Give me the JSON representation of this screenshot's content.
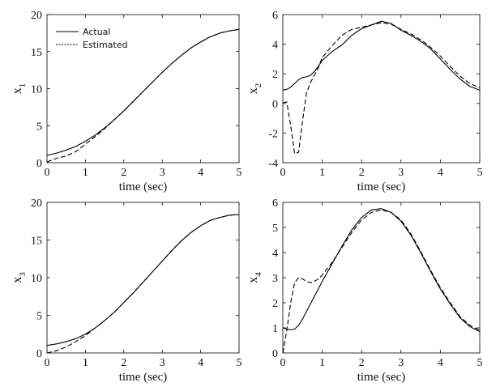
{
  "legend": {
    "actual_label": "Actual",
    "estimated_label": "Estimated"
  },
  "colors": {
    "line": "#000000",
    "frame": "#222222"
  },
  "chart_data": [
    {
      "type": "line",
      "ylabel": "x",
      "ylabel_sub": "1",
      "xlabel": "time (sec)",
      "xlim": [
        0,
        5
      ],
      "ylim": [
        0,
        20
      ],
      "xticks": [
        0,
        1,
        2,
        3,
        4,
        5
      ],
      "yticks": [
        0,
        5,
        10,
        15,
        20
      ],
      "legend_position": "top-left",
      "grid": false,
      "x": [
        0,
        0.25,
        0.5,
        0.75,
        1,
        1.25,
        1.5,
        1.75,
        2,
        2.25,
        2.5,
        2.75,
        3,
        3.25,
        3.5,
        3.75,
        4,
        4.25,
        4.5,
        4.75,
        5
      ],
      "series": [
        {
          "name": "Actual",
          "style": "solid",
          "values": [
            1.0,
            1.3,
            1.7,
            2.2,
            2.9,
            3.7,
            4.7,
            5.8,
            7.0,
            8.3,
            9.6,
            10.9,
            12.2,
            13.4,
            14.5,
            15.5,
            16.3,
            17.0,
            17.5,
            17.8,
            18.0
          ]
        },
        {
          "name": "Estimated",
          "style": "dashed",
          "values": [
            0.1,
            0.6,
            0.9,
            1.5,
            2.5,
            3.5,
            4.6,
            5.8,
            7.0,
            8.3,
            9.6,
            10.9,
            12.2,
            13.4,
            14.5,
            15.5,
            16.3,
            17.0,
            17.5,
            17.8,
            18.0
          ]
        }
      ]
    },
    {
      "type": "line",
      "ylabel": "x",
      "ylabel_sub": "2",
      "xlabel": "time (sec)",
      "xlim": [
        0,
        5
      ],
      "ylim": [
        -4,
        6
      ],
      "xticks": [
        0,
        1,
        2,
        3,
        4,
        5
      ],
      "yticks": [
        -4,
        -2,
        0,
        2,
        4,
        6
      ],
      "grid": false,
      "x": [
        0,
        0.1,
        0.2,
        0.3,
        0.4,
        0.5,
        0.6,
        0.7,
        0.8,
        0.9,
        1.0,
        1.25,
        1.5,
        1.75,
        2.0,
        2.25,
        2.5,
        2.75,
        3.0,
        3.25,
        3.5,
        3.75,
        4.0,
        4.25,
        4.5,
        4.75,
        5.0
      ],
      "series": [
        {
          "name": "Actual",
          "style": "solid",
          "values": [
            0.9,
            0.95,
            1.1,
            1.35,
            1.6,
            1.75,
            1.8,
            1.9,
            2.15,
            2.5,
            2.9,
            3.5,
            3.95,
            4.6,
            5.05,
            5.3,
            5.55,
            5.4,
            4.95,
            4.6,
            4.2,
            3.7,
            3.0,
            2.3,
            1.65,
            1.15,
            0.9
          ]
        },
        {
          "name": "Estimated",
          "style": "dashed",
          "values": [
            0.05,
            0.1,
            -1.5,
            -3.4,
            -3.3,
            -1.2,
            0.7,
            1.4,
            1.9,
            2.4,
            3.1,
            3.9,
            4.6,
            5.0,
            5.15,
            5.3,
            5.45,
            5.35,
            5.0,
            4.7,
            4.3,
            3.8,
            3.2,
            2.5,
            1.85,
            1.35,
            1.05
          ]
        }
      ]
    },
    {
      "type": "line",
      "ylabel": "x",
      "ylabel_sub": "3",
      "xlabel": "time (sec)",
      "xlim": [
        0,
        5
      ],
      "ylim": [
        0,
        20
      ],
      "xticks": [
        0,
        1,
        2,
        3,
        4,
        5
      ],
      "yticks": [
        0,
        5,
        10,
        15,
        20
      ],
      "grid": false,
      "x": [
        0,
        0.25,
        0.5,
        0.75,
        1,
        1.25,
        1.5,
        1.75,
        2,
        2.25,
        2.5,
        2.75,
        3,
        3.25,
        3.5,
        3.75,
        4,
        4.25,
        4.5,
        4.75,
        5
      ],
      "series": [
        {
          "name": "Actual",
          "style": "solid",
          "values": [
            1.0,
            1.2,
            1.5,
            1.9,
            2.5,
            3.3,
            4.3,
            5.4,
            6.7,
            8.0,
            9.4,
            10.8,
            12.2,
            13.6,
            14.9,
            16.0,
            16.9,
            17.6,
            18.0,
            18.3,
            18.4
          ]
        },
        {
          "name": "Estimated",
          "style": "dashed",
          "values": [
            0.0,
            0.3,
            0.8,
            1.5,
            2.3,
            3.3,
            4.3,
            5.4,
            6.7,
            8.0,
            9.4,
            10.8,
            12.2,
            13.6,
            14.9,
            16.0,
            16.9,
            17.6,
            18.0,
            18.3,
            18.4
          ]
        }
      ]
    },
    {
      "type": "line",
      "ylabel": "x",
      "ylabel_sub": "4",
      "xlabel": "time (sec)",
      "xlim": [
        0,
        5
      ],
      "ylim": [
        0,
        6
      ],
      "xticks": [
        0,
        1,
        2,
        3,
        4,
        5
      ],
      "yticks": [
        0,
        1,
        2,
        3,
        4,
        5,
        6
      ],
      "grid": false,
      "x": [
        0,
        0.1,
        0.2,
        0.3,
        0.4,
        0.5,
        0.6,
        0.7,
        0.8,
        0.9,
        1.0,
        1.25,
        1.5,
        1.75,
        2.0,
        2.25,
        2.5,
        2.75,
        3.0,
        3.25,
        3.5,
        3.75,
        4.0,
        4.25,
        4.5,
        4.75,
        5.0
      ],
      "series": [
        {
          "name": "Actual",
          "style": "solid",
          "values": [
            1.0,
            0.95,
            0.92,
            0.95,
            1.1,
            1.35,
            1.65,
            1.95,
            2.25,
            2.55,
            2.85,
            3.55,
            4.25,
            4.9,
            5.4,
            5.7,
            5.75,
            5.6,
            5.25,
            4.7,
            4.0,
            3.25,
            2.55,
            1.95,
            1.4,
            1.05,
            0.85
          ]
        },
        {
          "name": "Estimated",
          "style": "dashed",
          "values": [
            0.0,
            0.9,
            2.0,
            2.8,
            3.0,
            2.95,
            2.85,
            2.8,
            2.85,
            2.95,
            3.1,
            3.6,
            4.2,
            4.8,
            5.3,
            5.6,
            5.7,
            5.6,
            5.3,
            4.75,
            4.05,
            3.3,
            2.6,
            2.0,
            1.45,
            1.1,
            0.9
          ]
        }
      ]
    }
  ]
}
